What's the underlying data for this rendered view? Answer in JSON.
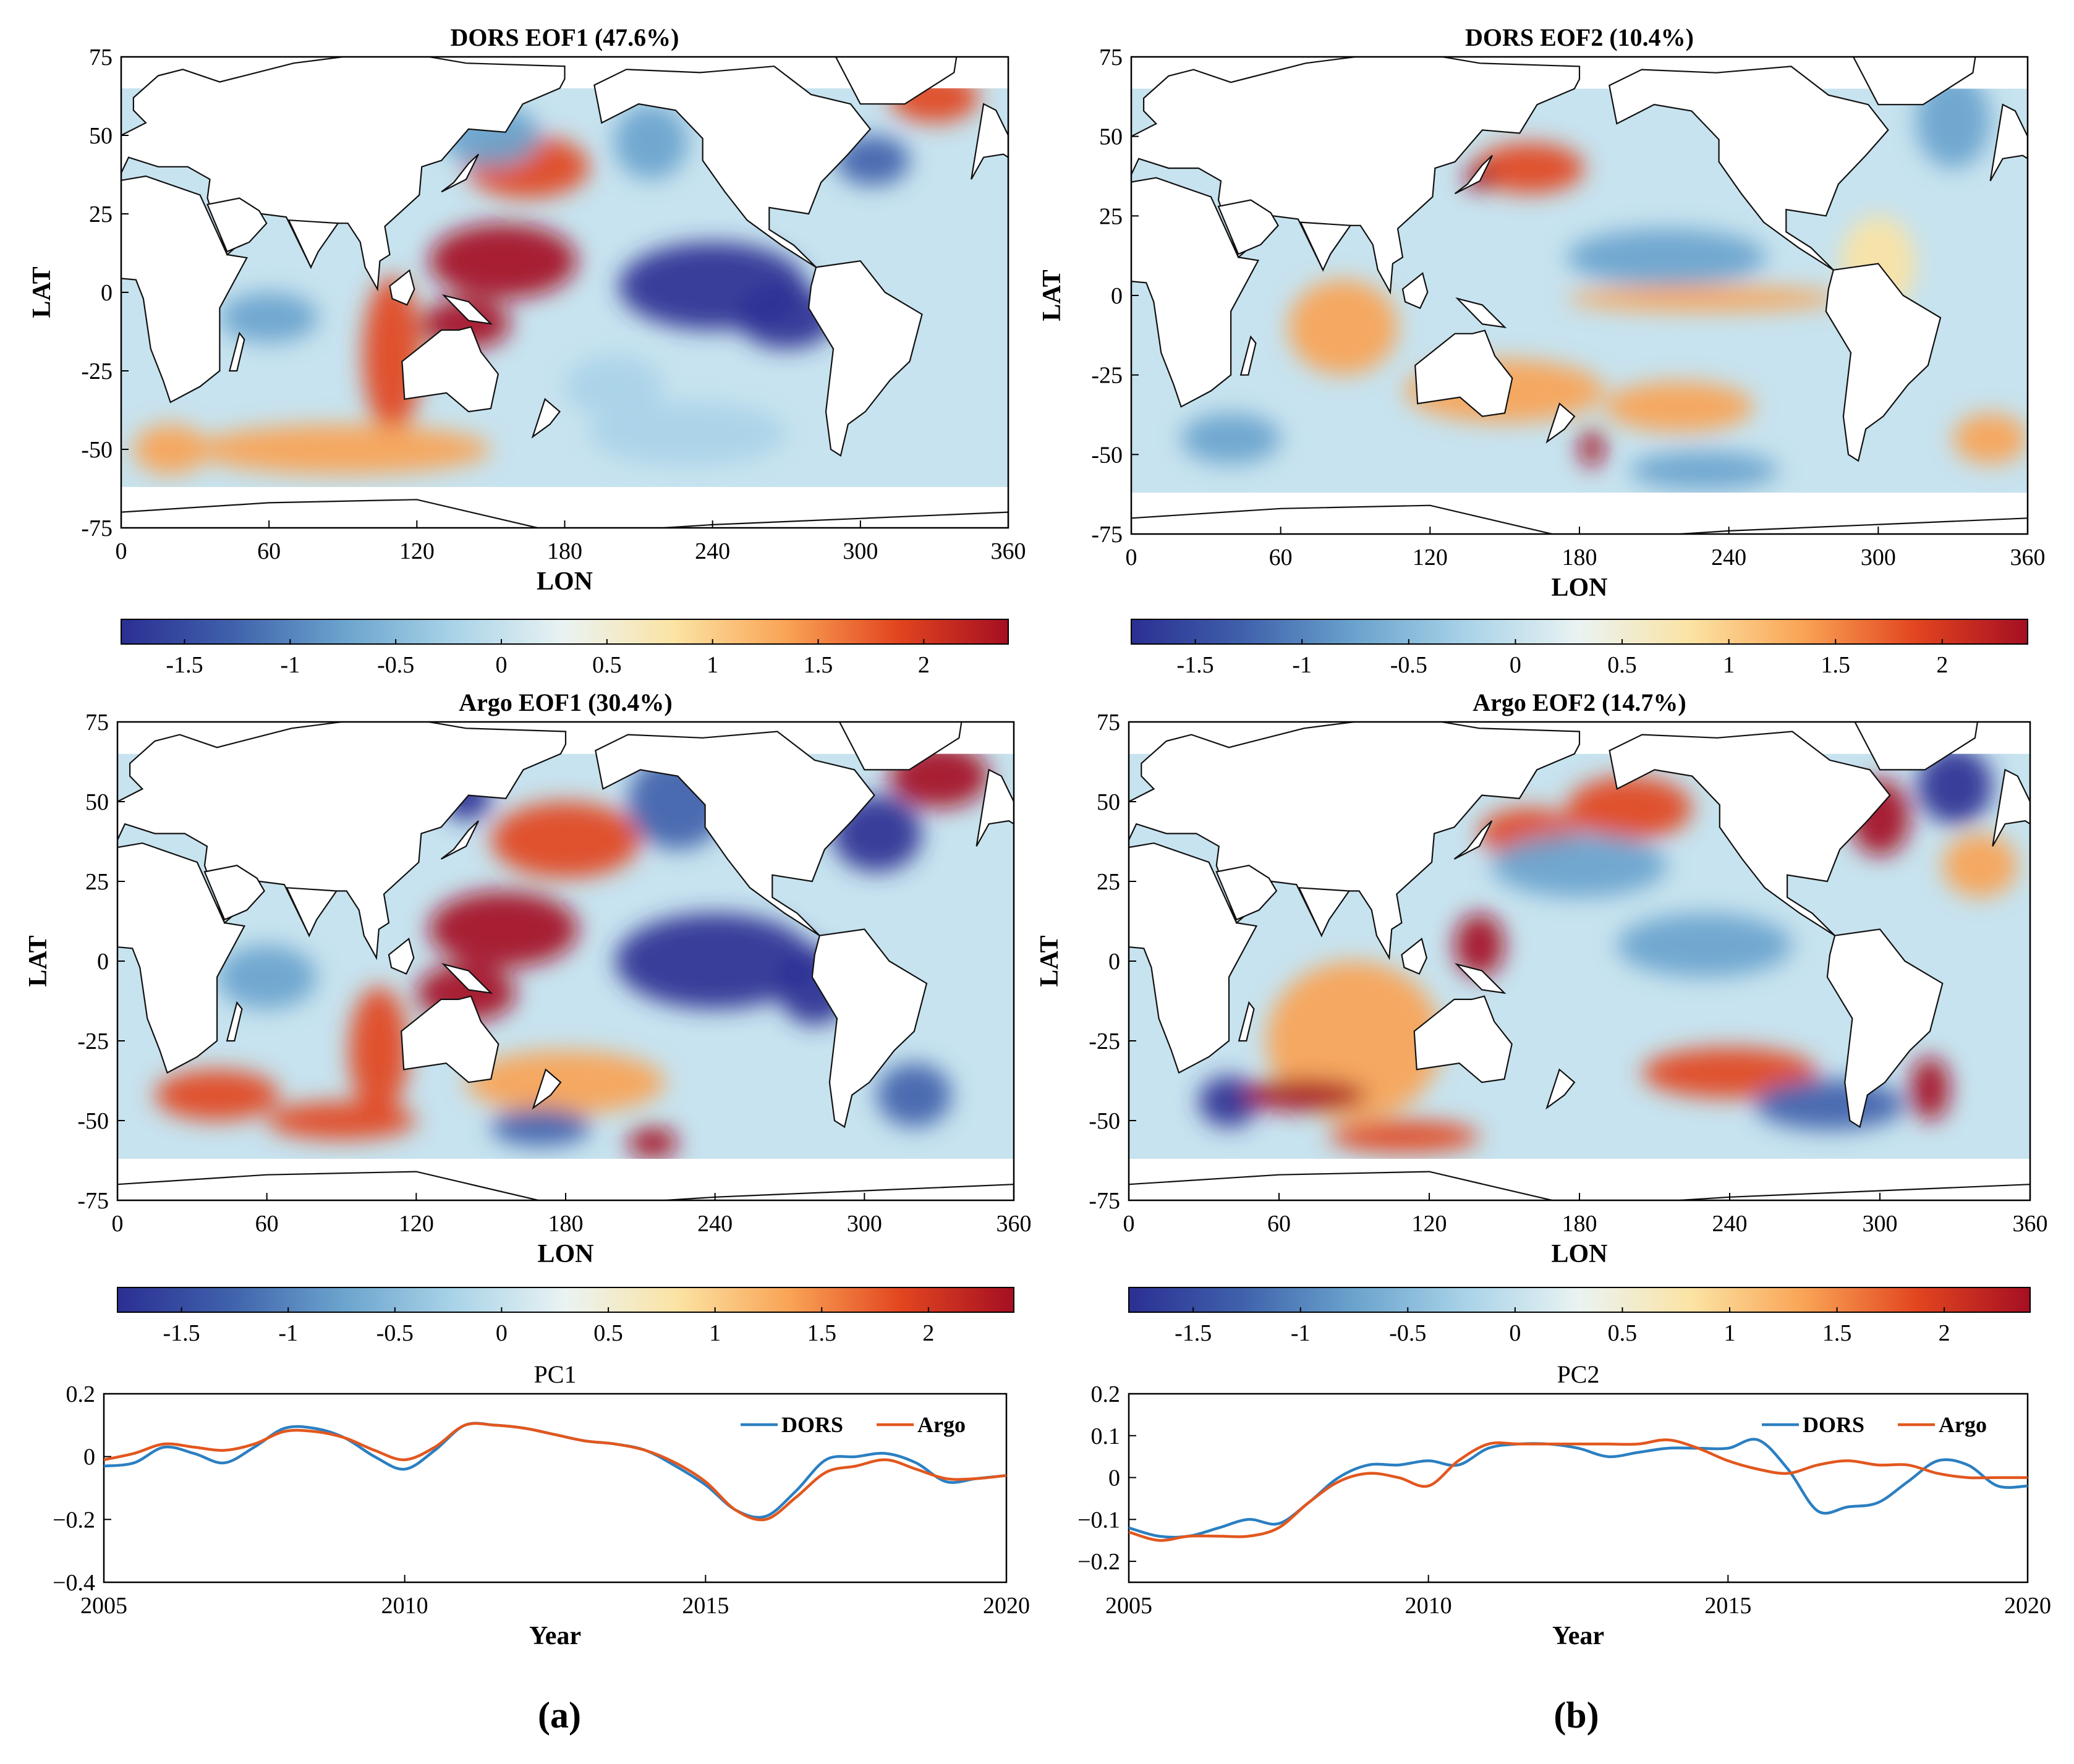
{
  "figure": {
    "panel_labels": [
      "(a)",
      "(b)"
    ]
  },
  "colors": {
    "dors": "#2b7fc1",
    "argo": "#e2571e",
    "colormap": [
      "#2b2f93",
      "#3f61ab",
      "#6aa3cd",
      "#a9d3e8",
      "#eaf3f2",
      "#fbe3a3",
      "#f9a355",
      "#e2451f",
      "#a50f22"
    ]
  },
  "maps": [
    {
      "id": "dors-eof1",
      "title": "DORS EOF1 (47.6%)",
      "variance_pct": 47.6,
      "xlabel": "LON",
      "ylabel": "LAT",
      "xticks": [
        "0",
        "60",
        "120",
        "180",
        "240",
        "300",
        "360"
      ],
      "yticks": [
        "75",
        "50",
        "25",
        "0",
        "-25",
        "-50",
        "-75"
      ],
      "colorbar": {
        "ticks": [
          "-1.5",
          "-1",
          "-0.5",
          "0",
          "0.5",
          "1",
          "1.5",
          "2"
        ],
        "range": [
          -1.8,
          2.4
        ]
      }
    },
    {
      "id": "dors-eof2",
      "title": "DORS EOF2 (10.4%)",
      "variance_pct": 10.4,
      "xlabel": "LON",
      "ylabel": "LAT",
      "xticks": [
        "0",
        "60",
        "120",
        "180",
        "240",
        "300",
        "360"
      ],
      "yticks": [
        "75",
        "50",
        "25",
        "0",
        "-25",
        "-50",
        "-75"
      ],
      "colorbar": {
        "ticks": [
          "-1.5",
          "-1",
          "-0.5",
          "0",
          "0.5",
          "1",
          "1.5",
          "2"
        ],
        "range": [
          -1.8,
          2.4
        ]
      }
    },
    {
      "id": "argo-eof1",
      "title": "Argo EOF1 (30.4%)",
      "variance_pct": 30.4,
      "xlabel": "LON",
      "ylabel": "LAT",
      "xticks": [
        "0",
        "60",
        "120",
        "180",
        "240",
        "300",
        "360"
      ],
      "yticks": [
        "75",
        "50",
        "25",
        "0",
        "-25",
        "-50",
        "-75"
      ],
      "colorbar": {
        "ticks": [
          "-1.5",
          "-1",
          "-0.5",
          "0",
          "0.5",
          "1",
          "1.5",
          "2"
        ],
        "range": [
          -1.8,
          2.4
        ]
      }
    },
    {
      "id": "argo-eof2",
      "title": "Argo EOF2 (14.7%)",
      "variance_pct": 14.7,
      "xlabel": "LON",
      "ylabel": "LAT",
      "xticks": [
        "0",
        "60",
        "120",
        "180",
        "240",
        "300",
        "360"
      ],
      "yticks": [
        "75",
        "50",
        "25",
        "0",
        "-25",
        "-50",
        "-75"
      ],
      "colorbar": {
        "ticks": [
          "-1.5",
          "-1",
          "-0.5",
          "0",
          "0.5",
          "1",
          "1.5",
          "2"
        ],
        "range": [
          -1.8,
          2.4
        ]
      }
    }
  ],
  "chart_data": [
    {
      "type": "line",
      "title": "PC1",
      "xlabel": "Year",
      "ylabel": "",
      "xlim": [
        2005,
        2020
      ],
      "ylim": [
        -0.4,
        0.2
      ],
      "xticks": [
        "2005",
        "2010",
        "2015",
        "2020"
      ],
      "yticks": [
        "0.2",
        "0",
        "−0.2",
        "−0.4"
      ],
      "legend": "top-right",
      "series": [
        {
          "name": "DORS",
          "x": [
            2005,
            2005.5,
            2006,
            2006.5,
            2007,
            2007.5,
            2008,
            2008.5,
            2009,
            2009.5,
            2010,
            2010.5,
            2011,
            2011.5,
            2012,
            2012.5,
            2013,
            2013.5,
            2014,
            2014.5,
            2015,
            2015.5,
            2016,
            2016.5,
            2017,
            2017.5,
            2018,
            2018.5,
            2019,
            2019.5,
            2020
          ],
          "values": [
            -0.03,
            -0.02,
            0.03,
            0.01,
            -0.02,
            0.03,
            0.09,
            0.09,
            0.06,
            0.0,
            -0.04,
            0.02,
            0.1,
            0.1,
            0.09,
            0.07,
            0.05,
            0.04,
            0.02,
            -0.03,
            -0.09,
            -0.17,
            -0.19,
            -0.11,
            -0.01,
            0.0,
            0.01,
            -0.02,
            -0.08,
            -0.07,
            -0.06
          ]
        },
        {
          "name": "Argo",
          "x": [
            2005,
            2005.5,
            2006,
            2006.5,
            2007,
            2007.5,
            2008,
            2008.5,
            2009,
            2009.5,
            2010,
            2010.5,
            2011,
            2011.5,
            2012,
            2012.5,
            2013,
            2013.5,
            2014,
            2014.5,
            2015,
            2015.5,
            2016,
            2016.5,
            2017,
            2017.5,
            2018,
            2018.5,
            2019,
            2019.5,
            2020
          ],
          "values": [
            -0.01,
            0.01,
            0.04,
            0.03,
            0.02,
            0.04,
            0.08,
            0.08,
            0.06,
            0.02,
            -0.01,
            0.03,
            0.1,
            0.1,
            0.09,
            0.07,
            0.05,
            0.04,
            0.02,
            -0.02,
            -0.08,
            -0.17,
            -0.2,
            -0.13,
            -0.05,
            -0.03,
            -0.01,
            -0.04,
            -0.07,
            -0.07,
            -0.06
          ]
        }
      ]
    },
    {
      "type": "line",
      "title": "PC2",
      "xlabel": "Year",
      "ylabel": "",
      "xlim": [
        2005,
        2020
      ],
      "ylim": [
        -0.25,
        0.2
      ],
      "xticks": [
        "2005",
        "2010",
        "2015",
        "2020"
      ],
      "yticks": [
        "0.2",
        "0.1",
        "0",
        "−0.1",
        "−0.2"
      ],
      "legend": "top-right",
      "series": [
        {
          "name": "DORS",
          "x": [
            2005,
            2005.5,
            2006,
            2006.5,
            2007,
            2007.5,
            2008,
            2008.5,
            2009,
            2009.5,
            2010,
            2010.5,
            2011,
            2011.5,
            2012,
            2012.5,
            2013,
            2013.5,
            2014,
            2014.5,
            2015,
            2015.5,
            2016,
            2016.5,
            2017,
            2017.5,
            2018,
            2018.5,
            2019,
            2019.5,
            2020
          ],
          "values": [
            -0.12,
            -0.14,
            -0.14,
            -0.12,
            -0.1,
            -0.11,
            -0.06,
            0.0,
            0.03,
            0.03,
            0.04,
            0.03,
            0.07,
            0.08,
            0.08,
            0.07,
            0.05,
            0.06,
            0.07,
            0.07,
            0.07,
            0.09,
            0.02,
            -0.08,
            -0.07,
            -0.06,
            -0.01,
            0.04,
            0.03,
            -0.02,
            -0.02
          ]
        },
        {
          "name": "Argo",
          "x": [
            2005,
            2005.5,
            2006,
            2006.5,
            2007,
            2007.5,
            2008,
            2008.5,
            2009,
            2009.5,
            2010,
            2010.5,
            2011,
            2011.5,
            2012,
            2012.5,
            2013,
            2013.5,
            2014,
            2014.5,
            2015,
            2015.5,
            2016,
            2016.5,
            2017,
            2017.5,
            2018,
            2018.5,
            2019,
            2019.5,
            2020
          ],
          "values": [
            -0.13,
            -0.15,
            -0.14,
            -0.14,
            -0.14,
            -0.12,
            -0.06,
            -0.01,
            0.01,
            0.0,
            -0.02,
            0.04,
            0.08,
            0.08,
            0.08,
            0.08,
            0.08,
            0.08,
            0.09,
            0.07,
            0.04,
            0.02,
            0.01,
            0.03,
            0.04,
            0.03,
            0.03,
            0.01,
            0.0,
            0.0,
            0.0
          ]
        }
      ]
    }
  ]
}
